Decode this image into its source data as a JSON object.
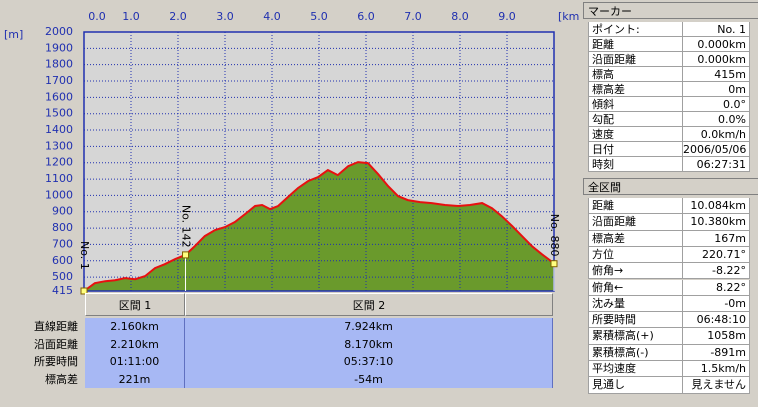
{
  "chart_data": {
    "type": "line",
    "x_unit": "[km]",
    "y_unit": "[m]",
    "x": [
      0,
      0.23,
      0.45,
      0.66,
      0.87,
      1.09,
      1.3,
      1.51,
      1.72,
      1.94,
      2.16,
      2.36,
      2.57,
      2.79,
      3.0,
      3.21,
      3.43,
      3.64,
      3.79,
      3.96,
      4.13,
      4.34,
      4.55,
      4.77,
      4.98,
      5.19,
      5.4,
      5.62,
      5.83,
      6.04,
      6.26,
      6.47,
      6.68,
      6.89,
      7.15,
      7.4,
      7.68,
      7.96,
      8.21,
      8.47,
      8.68,
      8.89,
      9.11,
      9.32,
      9.53,
      9.74,
      9.91,
      10.0
    ],
    "series": [
      {
        "color": "#e81010",
        "fill": "#6a9a2c",
        "values": [
          415,
          463,
          475,
          481,
          494,
          487,
          506,
          555,
          579,
          610,
          636,
          690,
          751,
          788,
          806,
          837,
          886,
          935,
          941,
          916,
          935,
          990,
          1045,
          1088,
          1112,
          1155,
          1124,
          1179,
          1204,
          1198,
          1130,
          1057,
          996,
          971,
          959,
          953,
          941,
          935,
          941,
          953,
          922,
          873,
          812,
          751,
          690,
          640,
          604,
          582
        ]
      }
    ],
    "xlim": [
      0,
      10
    ],
    "xticks": [
      {
        "value": 0,
        "label": "0.0"
      },
      {
        "value": 1,
        "label": "1.0"
      },
      {
        "value": 2,
        "label": "2.0"
      },
      {
        "value": 3,
        "label": "3.0"
      },
      {
        "value": 4,
        "label": "4.0"
      },
      {
        "value": 5,
        "label": "5.0"
      },
      {
        "value": 6,
        "label": "6.0"
      },
      {
        "value": 7,
        "label": "7.0"
      },
      {
        "value": 8,
        "label": "8.0"
      },
      {
        "value": 9,
        "label": "9.0"
      }
    ],
    "ylim": [
      415,
      2000
    ],
    "yticks": [
      415,
      500,
      600,
      700,
      800,
      900,
      1000,
      1100,
      1200,
      1300,
      1400,
      1500,
      1600,
      1700,
      1800,
      1900,
      2000
    ],
    "grid": true,
    "annotations": [
      {
        "text": "No. 1",
        "x": 0
      },
      {
        "text": "No. 142",
        "x": 2.16
      },
      {
        "text": "No. 880",
        "x": 10.0
      }
    ]
  },
  "sections": {
    "headers": [
      "区間 1",
      "区間 2"
    ],
    "rows": [
      {
        "label": "直線距離",
        "values": [
          "2.160km",
          "7.924km"
        ]
      },
      {
        "label": "沿面距離",
        "values": [
          "2.210km",
          "8.170km"
        ]
      },
      {
        "label": "所要時間",
        "values": [
          "01:11:00",
          "05:37:10"
        ]
      },
      {
        "label": "標高差",
        "values": [
          "221m",
          "-54m"
        ]
      }
    ]
  },
  "marker": {
    "title": "マーカー",
    "rows": [
      [
        "ポイント:",
        "No. 1"
      ],
      [
        "距離",
        "0.000km"
      ],
      [
        "沿面距離",
        "0.000km"
      ],
      [
        "標高",
        "415m"
      ],
      [
        "標高差",
        "0m"
      ],
      [
        "傾斜",
        "0.0°"
      ],
      [
        "勾配",
        "0.0%"
      ],
      [
        "速度",
        "0.0km/h"
      ],
      [
        "日付",
        "2006/05/06"
      ],
      [
        "時刻",
        "06:27:31"
      ]
    ]
  },
  "total": {
    "title": "全区間",
    "rows": [
      [
        "距離",
        "10.084km"
      ],
      [
        "沿面距離",
        "10.380km"
      ],
      [
        "標高差",
        "167m"
      ],
      [
        "方位",
        "220.71°"
      ],
      [
        "俯角→",
        "-8.22°"
      ],
      [
        "俯角←",
        "8.22°"
      ],
      [
        "沈み量",
        "-0m"
      ],
      [
        "所要時間",
        "06:48:10"
      ],
      [
        "累積標高(+)",
        "1058m"
      ],
      [
        "累積標高(-)",
        "-891m"
      ],
      [
        "平均速度",
        "1.5km/h"
      ],
      [
        "見通し",
        "見えません"
      ]
    ]
  }
}
